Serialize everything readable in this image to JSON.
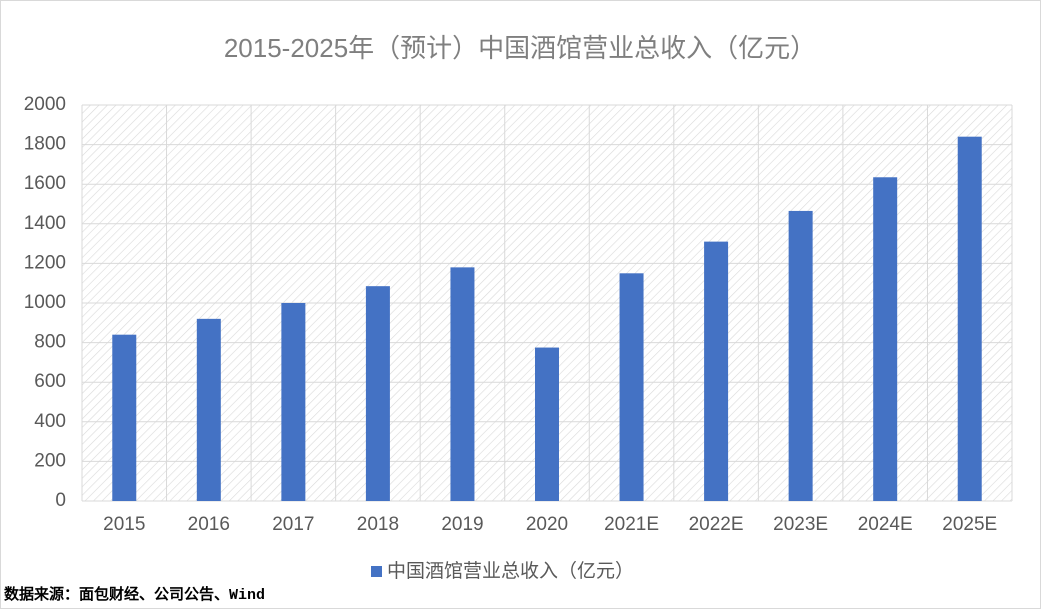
{
  "chart_data": {
    "type": "bar",
    "title": "2015-2025年（预计）中国酒馆营业总收入（亿元）",
    "categories": [
      "2015",
      "2016",
      "2017",
      "2018",
      "2019",
      "2020",
      "2021E",
      "2022E",
      "2023E",
      "2024E",
      "2025E"
    ],
    "series": [
      {
        "name": "中国酒馆营业总收入（亿元）",
        "color": "#4472c4",
        "values": [
          840,
          920,
          1000,
          1085,
          1180,
          775,
          1150,
          1310,
          1465,
          1635,
          1840
        ]
      }
    ],
    "ylim": [
      0,
      2000
    ],
    "yticks": [
      0,
      200,
      400,
      600,
      800,
      1000,
      1200,
      1400,
      1600,
      1800,
      2000
    ],
    "grid": true,
    "legend": "bottom",
    "source": "数据来源：面包财经、公司公告、Wind"
  }
}
